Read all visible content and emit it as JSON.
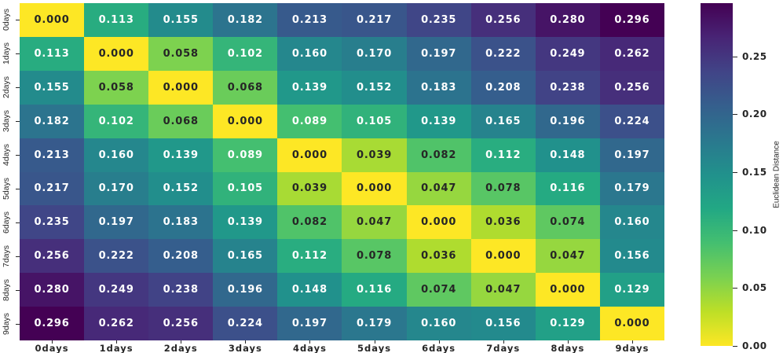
{
  "chart_data": {
    "type": "heatmap",
    "title": "",
    "x_categories": [
      "0days",
      "1days",
      "2days",
      "3days",
      "4days",
      "5days",
      "6days",
      "7days",
      "8days",
      "9days"
    ],
    "y_categories": [
      "0days",
      "1days",
      "2days",
      "3days",
      "4days",
      "5days",
      "6days",
      "7days",
      "8days",
      "9days"
    ],
    "matrix": [
      [
        0.0,
        0.113,
        0.155,
        0.182,
        0.213,
        0.217,
        0.235,
        0.256,
        0.28,
        0.296
      ],
      [
        0.113,
        0.0,
        0.058,
        0.102,
        0.16,
        0.17,
        0.197,
        0.222,
        0.249,
        0.262
      ],
      [
        0.155,
        0.058,
        0.0,
        0.068,
        0.139,
        0.152,
        0.183,
        0.208,
        0.238,
        0.256
      ],
      [
        0.182,
        0.102,
        0.068,
        0.0,
        0.089,
        0.105,
        0.139,
        0.165,
        0.196,
        0.224
      ],
      [
        0.213,
        0.16,
        0.139,
        0.089,
        0.0,
        0.039,
        0.082,
        0.112,
        0.148,
        0.197
      ],
      [
        0.217,
        0.17,
        0.152,
        0.105,
        0.039,
        0.0,
        0.047,
        0.078,
        0.116,
        0.179
      ],
      [
        0.235,
        0.197,
        0.183,
        0.139,
        0.082,
        0.047,
        0.0,
        0.036,
        0.074,
        0.16
      ],
      [
        0.256,
        0.222,
        0.208,
        0.165,
        0.112,
        0.078,
        0.036,
        0.0,
        0.047,
        0.156
      ],
      [
        0.28,
        0.249,
        0.238,
        0.196,
        0.148,
        0.116,
        0.074,
        0.047,
        0.0,
        0.129
      ],
      [
        0.296,
        0.262,
        0.256,
        0.224,
        0.197,
        0.179,
        0.16,
        0.156,
        0.129,
        0.0
      ]
    ],
    "cell_value_decimals": 3,
    "colorbar": {
      "label": "Euclidean Distance",
      "tick_labels": [
        "0.00",
        "0.05",
        "0.10",
        "0.15",
        "0.20",
        "0.25"
      ],
      "tick_values": [
        0.0,
        0.05,
        0.1,
        0.15,
        0.2,
        0.25
      ],
      "vmin": 0.0,
      "vmax": 0.296
    },
    "colormap": {
      "name": "viridis_r",
      "viridis_anchors": [
        "#440154",
        "#482475",
        "#414487",
        "#355f8d",
        "#2a788e",
        "#21918c",
        "#22a884",
        "#44bf70",
        "#7ad151",
        "#bddf26",
        "#fde725"
      ]
    },
    "annotation_colors": {
      "dark": "#262626",
      "light": "#ffffff"
    },
    "layout": {
      "grid": false,
      "legend_position": "right-colorbar"
    }
  }
}
